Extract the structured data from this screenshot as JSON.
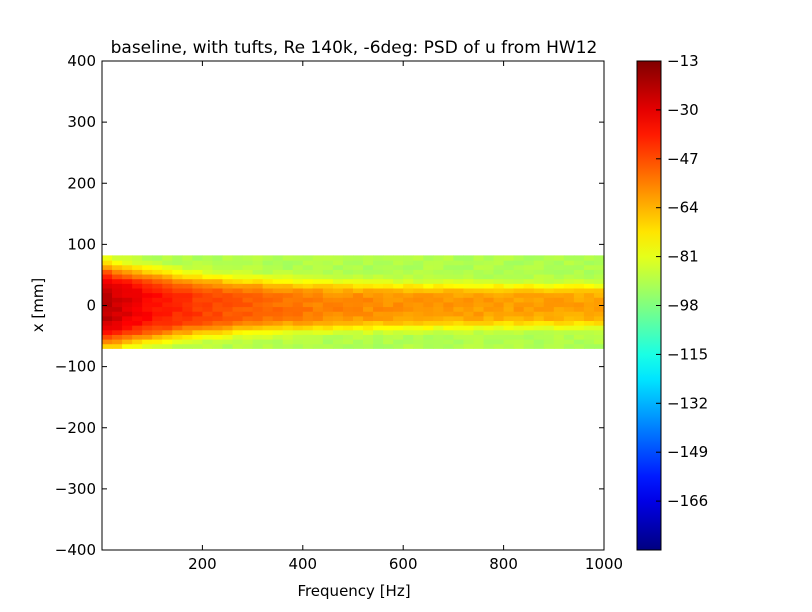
{
  "chart_data": {
    "type": "heatmap",
    "title": "baseline, with tufts, Re 140k, -6deg: PSD of u from HW12",
    "xlabel": "Frequency [Hz]",
    "ylabel": "x [mm]",
    "xlim": [
      0,
      1000
    ],
    "ylim": [
      -400,
      400
    ],
    "x_ticks": [
      200,
      400,
      600,
      800,
      1000
    ],
    "y_ticks": [
      400,
      300,
      200,
      100,
      0,
      -100,
      -200,
      -300,
      -400
    ],
    "data_extent": {
      "x": [
        0,
        1000
      ],
      "y": [
        -70,
        82
      ]
    },
    "colorbar": {
      "range": [
        -183,
        -13
      ],
      "ticks": [
        -13,
        -30,
        -47,
        -64,
        -81,
        -98,
        -115,
        -132,
        -149,
        -166
      ],
      "colormap": [
        "#00007f",
        "#0000ff",
        "#007fff",
        "#00ffff",
        "#7fff7f",
        "#ffff00"
      ]
    },
    "field_model": {
      "peak_db": -22,
      "floor_db": -90,
      "core_center_mm": 0,
      "core_halfwidth_low_freq_mm": 75,
      "core_halfwidth_high_freq_mm": 38,
      "freq_decay_hz": 240
    }
  }
}
